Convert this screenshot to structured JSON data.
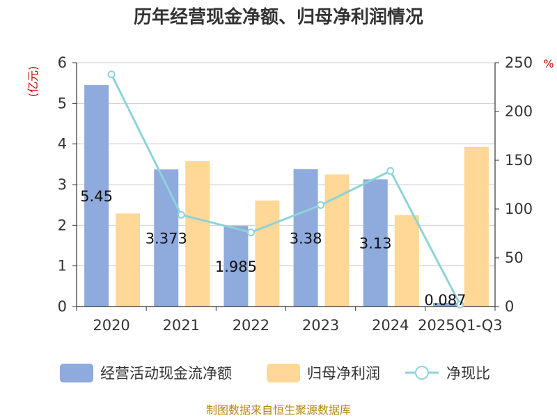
{
  "chart_data": {
    "type": "bar",
    "title": "历年经营现金净额、归母净利润情况",
    "categories": [
      "2020",
      "2021",
      "2022",
      "2023",
      "2024",
      "2025Q1-Q3"
    ],
    "series": [
      {
        "name": "经营活动现金流净额",
        "kind": "bar",
        "axis": "left",
        "color": "#8faadc",
        "values": [
          5.45,
          3.373,
          1.985,
          3.38,
          3.13,
          0.087
        ],
        "labels": [
          "5.45",
          "3.373",
          "1.985",
          "3.38",
          "3.13",
          "0.087"
        ]
      },
      {
        "name": "归母净利润",
        "kind": "bar",
        "axis": "left",
        "color": "#ffd796",
        "values": [
          2.29,
          3.58,
          2.61,
          3.25,
          2.25,
          3.93
        ]
      },
      {
        "name": "净现比",
        "kind": "line",
        "axis": "right",
        "color": "#8dd3d9",
        "values": [
          238,
          94,
          76,
          104,
          139,
          2
        ]
      }
    ],
    "y_left": {
      "unit": "(亿元)",
      "ylim": [
        0,
        6
      ],
      "ticks": [
        "0",
        "1",
        "2",
        "3",
        "4",
        "5",
        "6"
      ]
    },
    "y_right": {
      "unit": "%",
      "ylim": [
        0,
        250
      ],
      "ticks": [
        "0",
        "50",
        "100",
        "150",
        "200",
        "250"
      ]
    },
    "grid": true,
    "legend_position": "bottom",
    "source": "制图数据来自恒生聚源数据库"
  }
}
